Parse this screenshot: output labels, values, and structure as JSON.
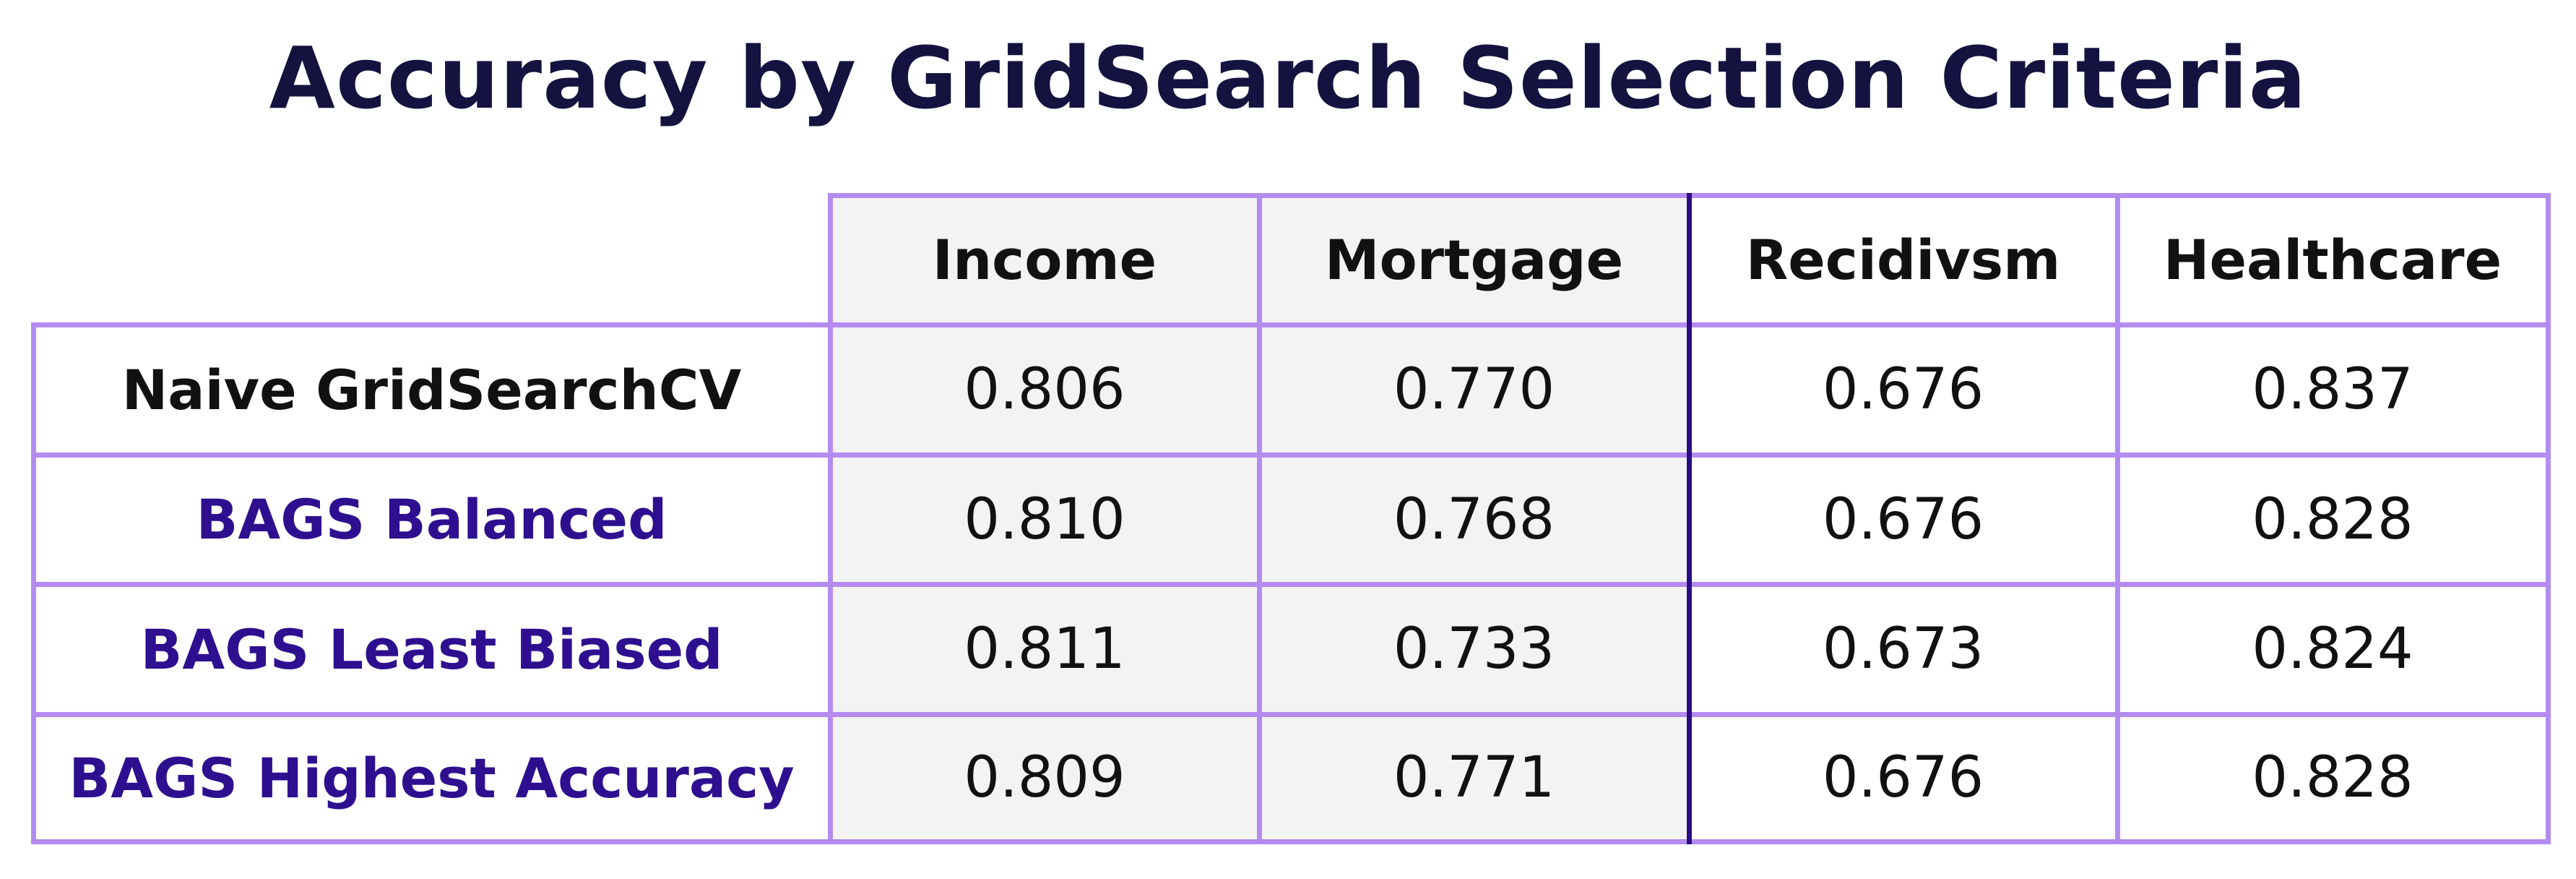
{
  "colors": {
    "title": "#14123f",
    "grid_line": "#b48cf0",
    "divider": "#2a0c86",
    "shaded_columns": "#f3f3f3",
    "bags_label": "#2e0f8f",
    "naive_label": "#111111"
  },
  "chart_data": {
    "type": "table",
    "title": "Accuracy by GridSearch Selection Criteria",
    "columns": [
      "Income",
      "Mortgage",
      "Recidivsm",
      "Healthcare"
    ],
    "rows": [
      {
        "label": "Naive GridSearchCV",
        "values": [
          "0.806",
          "0.770",
          "0.676",
          "0.837"
        ]
      },
      {
        "label": "BAGS Balanced",
        "values": [
          "0.810",
          "0.768",
          "0.676",
          "0.828"
        ]
      },
      {
        "label": "BAGS Least Biased",
        "values": [
          "0.811",
          "0.733",
          "0.673",
          "0.824"
        ]
      },
      {
        "label": "BAGS Highest Accuracy",
        "values": [
          "0.809",
          "0.771",
          "0.676",
          "0.828"
        ]
      }
    ]
  }
}
